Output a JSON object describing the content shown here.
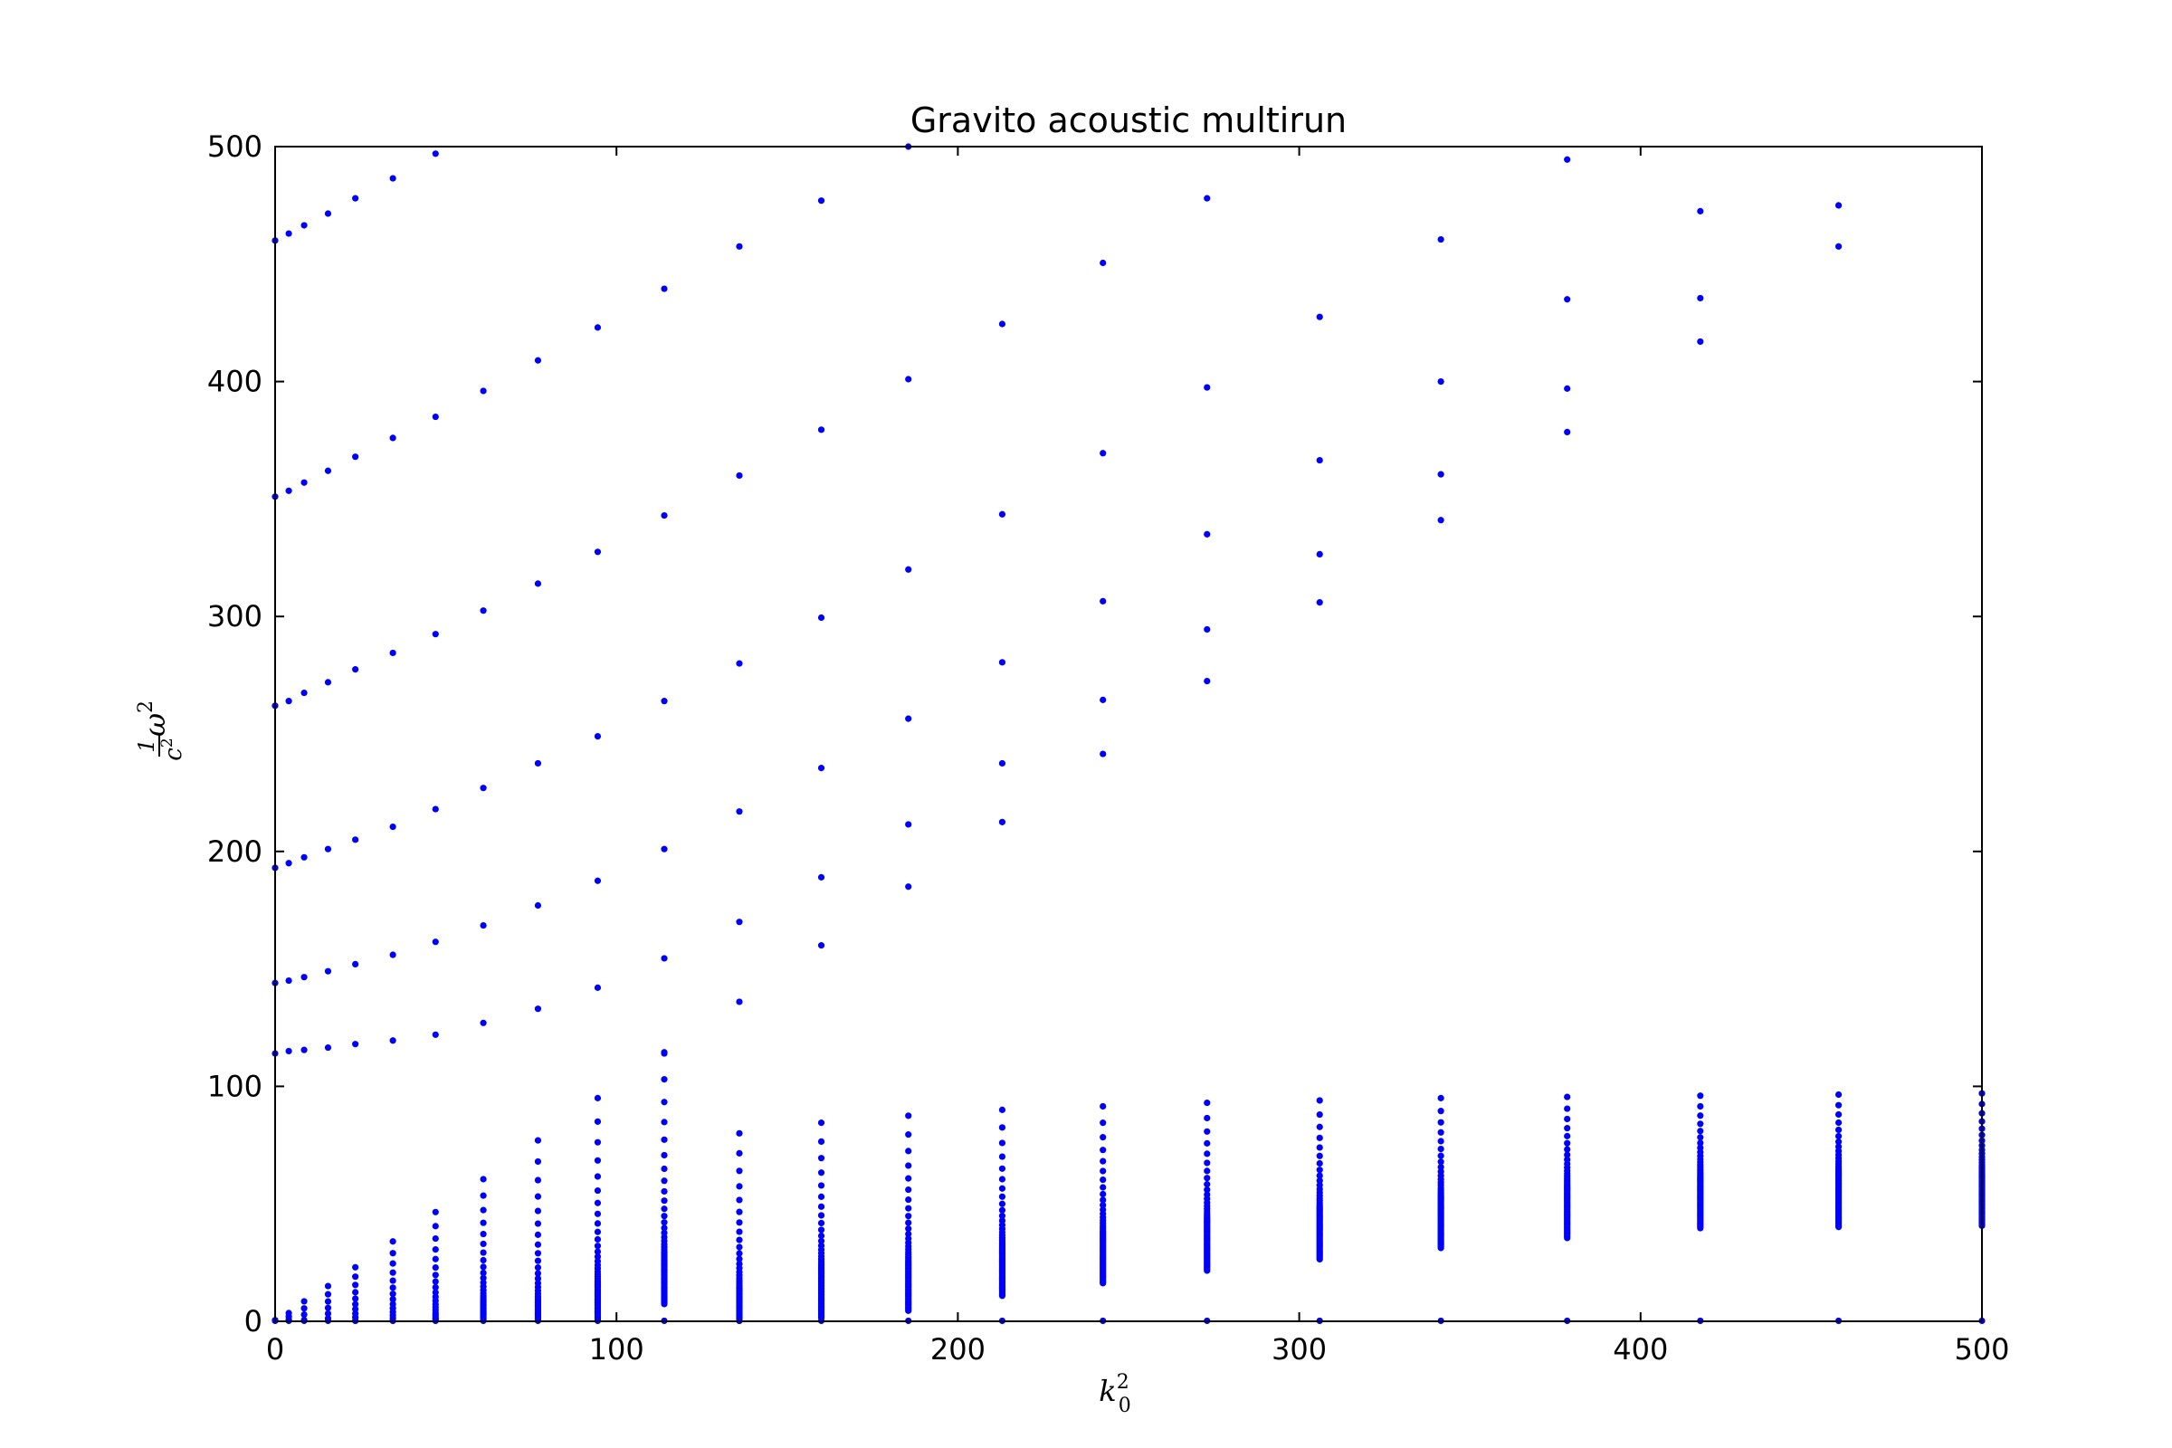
{
  "chart_data": {
    "type": "scatter",
    "title": "Gravito acoustic multirun",
    "xlabel": {
      "base": "k",
      "sub": "0",
      "sup": "2"
    },
    "ylabel": {
      "frac_num": "1",
      "frac_den": "c",
      "den_sup": "2",
      "base": "ω",
      "sup": "2"
    },
    "xlim": [
      0,
      500
    ],
    "ylim": [
      0,
      500
    ],
    "xticks": [
      0,
      100,
      200,
      300,
      400,
      500
    ],
    "yticks": [
      0,
      100,
      200,
      300,
      400,
      500
    ],
    "grid": false,
    "marker_color": "#0000ff",
    "k_values": [
      0,
      4.0,
      8.5,
      15.5,
      23.5,
      34.5,
      47,
      61,
      77,
      94.5,
      114,
      136,
      160,
      185.5,
      213,
      242.5,
      273,
      306,
      341.5,
      378.5,
      417.5,
      458,
      500
    ],
    "upper_branch_points": [
      [
        0,
        114
      ],
      [
        4,
        115
      ],
      [
        8.5,
        115.5
      ],
      [
        15.5,
        116.5
      ],
      [
        23.5,
        118
      ],
      [
        34.5,
        119.5
      ],
      [
        47,
        122
      ],
      [
        61,
        127
      ],
      [
        77,
        133
      ],
      [
        94.5,
        142
      ],
      [
        114,
        154.5
      ],
      [
        136,
        170
      ],
      [
        160,
        160
      ],
      [
        114,
        114.5
      ],
      [
        136,
        136
      ],
      [
        0,
        144
      ],
      [
        4,
        145
      ],
      [
        8.5,
        146.5
      ],
      [
        15.5,
        149
      ],
      [
        23.5,
        152
      ],
      [
        34.5,
        156
      ],
      [
        47,
        161.5
      ],
      [
        61,
        168.5
      ],
      [
        77,
        177
      ],
      [
        94.5,
        187.5
      ],
      [
        114,
        201
      ],
      [
        136,
        217
      ],
      [
        160,
        235.5
      ],
      [
        185.5,
        185
      ],
      [
        160,
        189
      ],
      [
        185.5,
        211.5
      ],
      [
        213,
        212.5
      ],
      [
        213,
        237.5
      ],
      [
        0,
        193
      ],
      [
        4,
        195
      ],
      [
        8.5,
        197.5
      ],
      [
        15.5,
        201
      ],
      [
        23.5,
        205
      ],
      [
        34.5,
        210.5
      ],
      [
        47,
        218
      ],
      [
        61,
        227
      ],
      [
        77,
        237.5
      ],
      [
        94.5,
        249
      ],
      [
        114,
        264
      ],
      [
        136,
        280
      ],
      [
        160,
        299.5
      ],
      [
        185.5,
        256.5
      ],
      [
        213,
        280.5
      ],
      [
        242.5,
        241.5
      ],
      [
        242.5,
        264.5
      ],
      [
        273,
        272.5
      ],
      [
        273,
        294.5
      ],
      [
        0,
        262
      ],
      [
        4,
        264
      ],
      [
        8.5,
        267.5
      ],
      [
        15.5,
        272
      ],
      [
        23.5,
        277.5
      ],
      [
        34.5,
        284.5
      ],
      [
        47,
        292.5
      ],
      [
        61,
        302.5
      ],
      [
        77,
        314
      ],
      [
        94.5,
        327.5
      ],
      [
        114,
        343
      ],
      [
        136,
        360
      ],
      [
        160,
        379.5
      ],
      [
        185.5,
        320
      ],
      [
        213,
        343.5
      ],
      [
        242.5,
        306.5
      ],
      [
        273,
        335
      ],
      [
        306,
        306
      ],
      [
        306,
        326.5
      ],
      [
        0,
        351
      ],
      [
        4,
        353.5
      ],
      [
        8.5,
        357
      ],
      [
        15.5,
        362
      ],
      [
        23.5,
        368
      ],
      [
        34.5,
        376
      ],
      [
        47,
        385
      ],
      [
        61,
        396
      ],
      [
        77,
        409
      ],
      [
        94.5,
        423
      ],
      [
        114,
        439.5
      ],
      [
        136,
        457.5
      ],
      [
        160,
        477
      ],
      [
        185.5,
        401
      ],
      [
        213,
        424.5
      ],
      [
        242.5,
        369.5
      ],
      [
        273,
        397.5
      ],
      [
        306,
        366.5
      ],
      [
        341.5,
        341
      ],
      [
        341.5,
        360.5
      ],
      [
        0,
        460
      ],
      [
        4,
        463
      ],
      [
        8.5,
        466.5
      ],
      [
        15.5,
        471.5
      ],
      [
        23.5,
        478
      ],
      [
        34.5,
        486.5
      ],
      [
        47,
        497
      ],
      [
        185.5,
        500
      ],
      [
        242.5,
        450.5
      ],
      [
        273,
        478
      ],
      [
        306,
        427.5
      ],
      [
        341.5,
        400
      ],
      [
        341.5,
        460.5
      ],
      [
        378.5,
        378.5
      ],
      [
        378.5,
        397
      ],
      [
        378.5,
        435
      ],
      [
        378.5,
        494.5
      ],
      [
        417.5,
        417
      ],
      [
        417.5,
        435.5
      ],
      [
        417.5,
        472.5
      ],
      [
        458,
        457.5
      ],
      [
        458,
        475
      ]
    ],
    "lower_branch_tops": [
      0.5,
      3.5,
      8.5,
      15,
      23,
      34,
      46.5,
      60.5,
      77,
      95,
      114,
      80,
      84.5,
      87.5,
      90,
      91.5,
      93,
      94,
      95,
      95.5,
      96,
      96.5,
      97
    ],
    "lower_branch_upper_spacing": [
      0.5,
      1.5,
      3,
      3.5,
      4,
      5,
      6,
      7,
      9,
      10,
      11,
      8.5,
      8,
      8,
      7.5,
      7,
      6.5,
      6,
      5.5,
      5,
      4.5,
      4.5,
      4.5
    ]
  }
}
